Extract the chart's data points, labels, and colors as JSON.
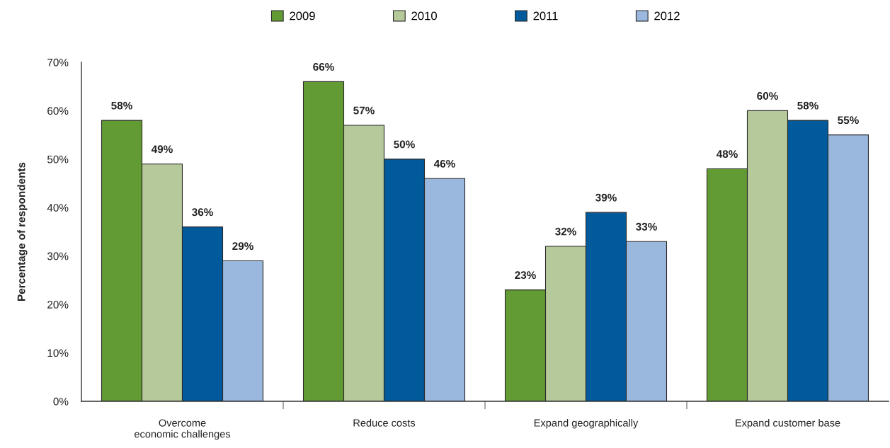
{
  "chart_data": {
    "type": "bar",
    "ylabel": "Percentage of respondents",
    "categories": [
      "Overcome\neconomic challenges",
      "Reduce costs",
      "Expand geographically",
      "Expand customer base"
    ],
    "series": [
      {
        "name": "2009",
        "color": "#629b33",
        "values": [
          58,
          66,
          23,
          48
        ],
        "value_labels": [
          "58%",
          "66%",
          "23%",
          "48%"
        ]
      },
      {
        "name": "2010",
        "color": "#b5c99a",
        "values": [
          49,
          57,
          32,
          60
        ],
        "value_labels": [
          "49%",
          "57%",
          "32%",
          "60%"
        ]
      },
      {
        "name": "2011",
        "color": "#005a9c",
        "values": [
          36,
          50,
          39,
          58
        ],
        "value_labels": [
          "36%",
          "50%",
          "39%",
          "58%"
        ]
      },
      {
        "name": "2012",
        "color": "#9ab7dd",
        "values": [
          29,
          46,
          33,
          55
        ],
        "value_labels": [
          "29%",
          "46%",
          "33%",
          "55%"
        ]
      }
    ],
    "ylim": [
      0,
      70
    ],
    "yticks": [
      {
        "value": 0,
        "label": "0%"
      },
      {
        "value": 10,
        "label": "10%"
      },
      {
        "value": 20,
        "label": "20%"
      },
      {
        "value": 30,
        "label": "30%"
      },
      {
        "value": 40,
        "label": "40%"
      },
      {
        "value": 50,
        "label": "50%"
      },
      {
        "value": 60,
        "label": "60%"
      },
      {
        "value": 70,
        "label": "70%"
      }
    ],
    "grid": false,
    "legend": "top"
  }
}
